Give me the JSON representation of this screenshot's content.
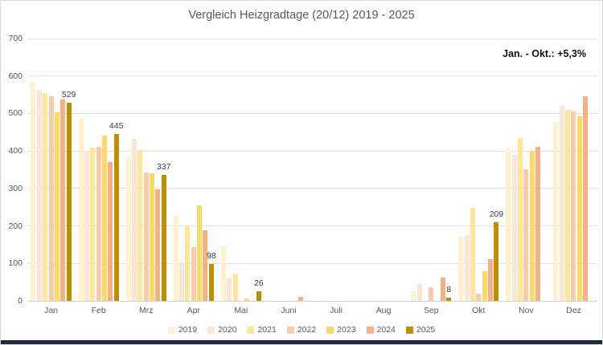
{
  "chart": {
    "title": "Vergleich Heizgradtage (20/12) 2019 - 2025",
    "annotation": "Jan. - Okt.: +5,3%"
  },
  "chart_data": {
    "type": "bar",
    "title": "Vergleich Heizgradtage (20/12) 2019 - 2025",
    "annotation": "Jan. - Okt.: +5,3%",
    "categories": [
      "Jan",
      "Feb",
      "Mrz",
      "Apr",
      "Mai",
      "Juni",
      "Juli",
      "Aug",
      "Sep",
      "Okt",
      "Nov",
      "Dez"
    ],
    "series": [
      {
        "name": "2019",
        "color": "#FFF2CC",
        "values": [
          585,
          485,
          385,
          228,
          145,
          0,
          0,
          0,
          25,
          172,
          408,
          477
        ]
      },
      {
        "name": "2020",
        "color": "#FBE5D6",
        "values": [
          562,
          400,
          432,
          103,
          61,
          0,
          0,
          0,
          46,
          175,
          390,
          520
        ]
      },
      {
        "name": "2021",
        "color": "#FFE699",
        "values": [
          555,
          408,
          403,
          202,
          72,
          0,
          0,
          0,
          0,
          248,
          435,
          510
        ]
      },
      {
        "name": "2022",
        "color": "#F8CBAD",
        "values": [
          545,
          410,
          342,
          144,
          0,
          0,
          0,
          0,
          36,
          20,
          352,
          505
        ]
      },
      {
        "name": "2023",
        "color": "#FFD966",
        "values": [
          503,
          440,
          341,
          255,
          7,
          0,
          0,
          0,
          0,
          80,
          400,
          493
        ]
      },
      {
        "name": "2024",
        "color": "#F4B183",
        "values": [
          538,
          370,
          298,
          188,
          0,
          10,
          0,
          0,
          62,
          112,
          410,
          545
        ]
      },
      {
        "name": "2025",
        "color": "#BF8F00",
        "values": [
          529,
          445,
          337,
          98,
          26,
          0,
          0,
          0,
          8,
          209,
          null,
          null
        ],
        "point_labels": [
          529,
          445,
          337,
          98,
          26,
          null,
          null,
          null,
          8,
          209,
          null,
          null
        ]
      }
    ],
    "ylim": [
      0,
      700
    ],
    "yticks": [
      0,
      100,
      200,
      300,
      400,
      500,
      600,
      700
    ],
    "grid": "horizontal",
    "legend_position": "bottom"
  },
  "colors": {
    "title_text": "#595959",
    "axis_text": "#595959",
    "gridline": "#E2E2E2",
    "data_label": "#404040",
    "annotation_text": "#111111",
    "bottom_bar": "#1C2B3A",
    "background": "#FFFFFF",
    "border": "#D9D9D9"
  }
}
